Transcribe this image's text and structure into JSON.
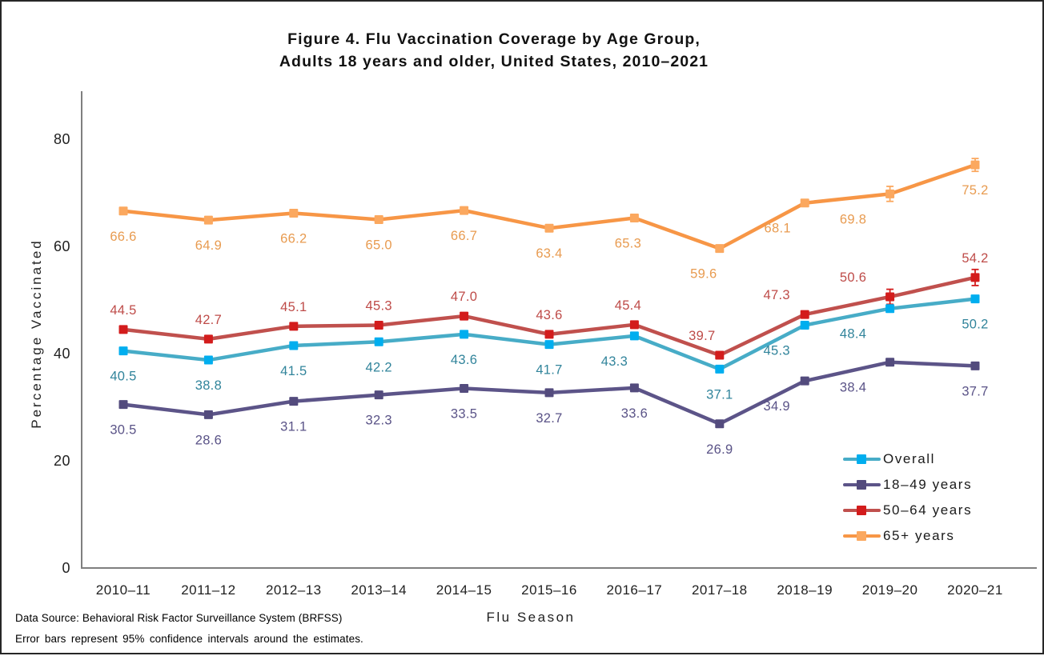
{
  "title": {
    "line1": "Figure 4. Flu Vaccination Coverage by Age Group,",
    "line2": "Adults 18 years and older, United States, 2010–2021"
  },
  "footer": {
    "line1": "Data Source: Behavioral Risk Factor Surveillance System (BRFSS)",
    "line2": "Error bars represent 95% confidence intervals around the estimates."
  },
  "chart_data": {
    "type": "line",
    "title": "Figure 4. Flu Vaccination Coverage by Age Group, Adults 18 years and older, United States, 2010–2021",
    "xlabel": "Flu Season",
    "ylabel": "Percentage Vaccinated",
    "ylim": [
      0,
      88
    ],
    "yticks": [
      0,
      20,
      40,
      60,
      80
    ],
    "grid": false,
    "legend_position": "inside lower right",
    "axis_color": "#7F7F7F",
    "tick_label_color": "#1f1f1f",
    "categories": [
      "2010–11",
      "2011–12",
      "2012–13",
      "2013–14",
      "2014–15",
      "2015–16",
      "2016–17",
      "2017–18",
      "2018–19",
      "2019–20",
      "2020–21"
    ],
    "series": [
      {
        "name": "Overall",
        "values": [
          40.5,
          38.8,
          41.5,
          42.2,
          43.6,
          41.7,
          43.3,
          37.1,
          45.3,
          48.4,
          50.2
        ],
        "line_color": "#47ACC7",
        "marker_color": "#00AEEF",
        "label_color": "#31849B",
        "label_position": "below",
        "label_dx": [
          0,
          0,
          0,
          0,
          0,
          0,
          -25,
          0,
          -35,
          -46,
          0
        ]
      },
      {
        "name": "18–49 years",
        "values": [
          30.5,
          28.6,
          31.1,
          32.3,
          33.5,
          32.7,
          33.6,
          26.9,
          34.9,
          38.4,
          37.7
        ],
        "line_color": "#5C5488",
        "marker_color": "#534B7D",
        "label_color": "#5A5387",
        "label_position": "below",
        "label_dx": [
          0,
          0,
          0,
          0,
          0,
          0,
          0,
          0,
          -35,
          -46,
          0
        ]
      },
      {
        "name": "50–64 years",
        "values": [
          44.5,
          42.7,
          45.1,
          45.3,
          47.0,
          43.6,
          45.4,
          39.7,
          47.3,
          50.6,
          54.2
        ],
        "line_color": "#C0504D",
        "marker_color": "#D31C1C",
        "label_color": "#BE4B48",
        "label_position": "above",
        "label_dx": [
          0,
          0,
          0,
          0,
          0,
          0,
          -8,
          -22,
          -35,
          -46,
          0
        ]
      },
      {
        "name": "65+ years",
        "values": [
          66.6,
          64.9,
          66.2,
          65.0,
          66.7,
          63.4,
          65.3,
          59.6,
          68.1,
          69.8,
          75.2
        ],
        "line_color": "#F79646",
        "marker_color": "#FBA85F",
        "label_color": "#E89B50",
        "label_position": "below",
        "label_dx": [
          0,
          0,
          0,
          0,
          0,
          0,
          -8,
          -20,
          -34,
          -46,
          0
        ]
      }
    ],
    "error_bars": [
      {
        "series": "50–64 years",
        "index": 9,
        "extent": 1.4
      },
      {
        "series": "50–64 years",
        "index": 10,
        "extent": 1.5
      },
      {
        "series": "65+ years",
        "index": 9,
        "extent": 1.4
      },
      {
        "series": "65+ years",
        "index": 10,
        "extent": 1.2
      }
    ]
  }
}
